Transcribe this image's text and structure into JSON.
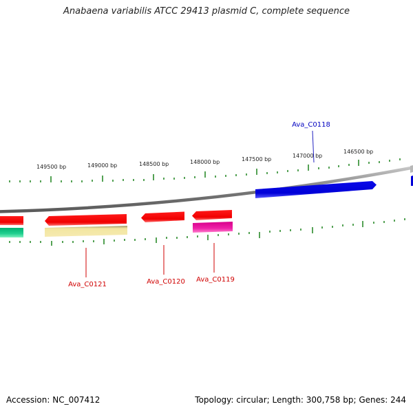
{
  "title": "Anabaena variabilis ATCC 29413 plasmid C, complete sequence",
  "footer": {
    "accession": "Accession: NC_007412",
    "summary": "Topology: circular; Length: 300,758 bp; Genes: 244"
  },
  "scale_labels": [
    "149500 bp",
    "149000 bp",
    "148500 bp",
    "148000 bp",
    "147500 bp",
    "147000 bp",
    "146500 bp"
  ],
  "genes": [
    {
      "name": "Ava_C0121",
      "color": "#e8000b"
    },
    {
      "name": "Ava_C0120",
      "color": "#e8000b"
    },
    {
      "name": "Ava_C0119",
      "color": "#e8000b"
    },
    {
      "name": "Ava_C0118",
      "color": "#0000c8"
    }
  ],
  "colors": {
    "backbone": "#8a8a8a",
    "tick": "#2a8a2a",
    "forward_gene": "#0000e0",
    "reverse_gene": "#ff0000",
    "pink_feature": "#e0109a",
    "yellow_feature": "#f2e6a0",
    "green_feature": "#00c080",
    "red_label": "#d00000",
    "blue_label": "#0000c0"
  }
}
